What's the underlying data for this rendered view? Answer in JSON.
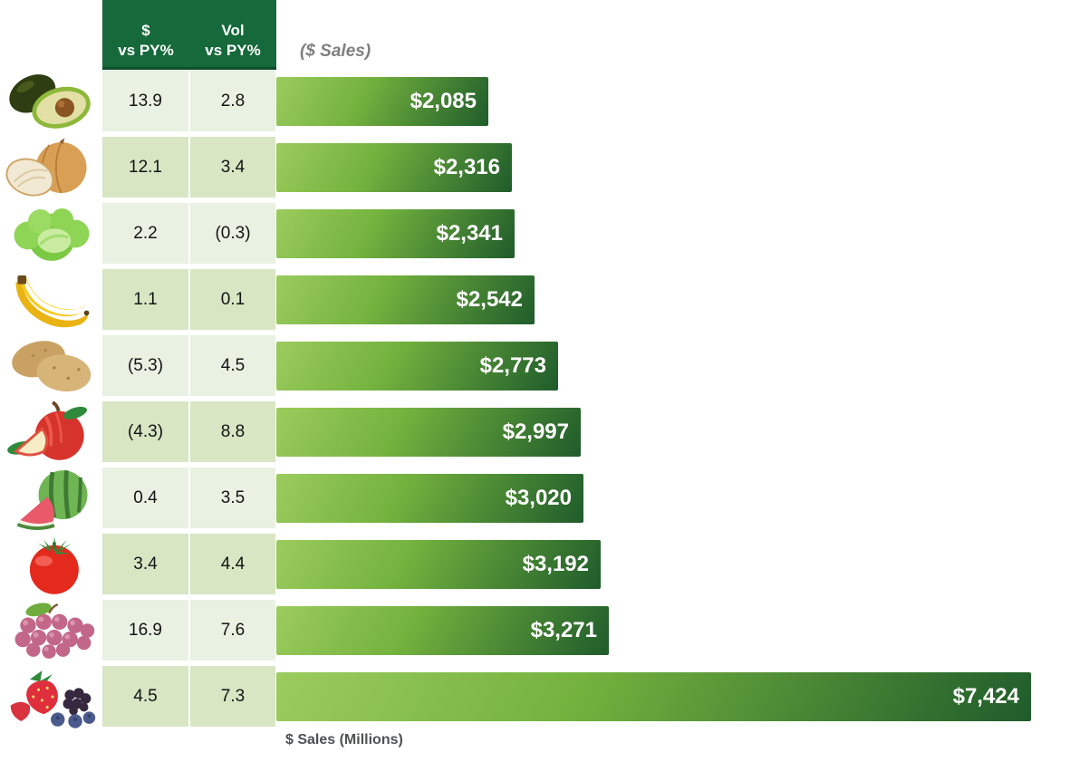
{
  "header": {
    "dollar_col": {
      "line1": "$",
      "line2": "vs PY%"
    },
    "vol_col": {
      "line1": "Vol",
      "line2": "vs PY%"
    },
    "bars_title": "($ Sales)"
  },
  "footer": {
    "axis_label": "$ Sales (Millions)"
  },
  "rows": [
    {
      "product": "Avocado",
      "icon": "avocado-icon",
      "dollar_vs_py": "13.9",
      "vol_vs_py": "2.8",
      "sales_label": "$2,085",
      "sales_value": 2085
    },
    {
      "product": "Onion",
      "icon": "onion-icon",
      "dollar_vs_py": "12.1",
      "vol_vs_py": "3.4",
      "sales_label": "$2,316",
      "sales_value": 2316
    },
    {
      "product": "Lettuce",
      "icon": "lettuce-icon",
      "dollar_vs_py": "2.2",
      "vol_vs_py": "(0.3)",
      "sales_label": "$2,341",
      "sales_value": 2341
    },
    {
      "product": "Banana",
      "icon": "banana-icon",
      "dollar_vs_py": "1.1",
      "vol_vs_py": "0.1",
      "sales_label": "$2,542",
      "sales_value": 2542
    },
    {
      "product": "Potato",
      "icon": "potato-icon",
      "dollar_vs_py": "(5.3)",
      "vol_vs_py": "4.5",
      "sales_label": "$2,773",
      "sales_value": 2773
    },
    {
      "product": "Apple",
      "icon": "apple-icon",
      "dollar_vs_py": "(4.3)",
      "vol_vs_py": "8.8",
      "sales_label": "$2,997",
      "sales_value": 2997
    },
    {
      "product": "Watermelon",
      "icon": "watermelon-icon",
      "dollar_vs_py": "0.4",
      "vol_vs_py": "3.5",
      "sales_label": "$3,020",
      "sales_value": 3020
    },
    {
      "product": "Tomato",
      "icon": "tomato-icon",
      "dollar_vs_py": "3.4",
      "vol_vs_py": "4.4",
      "sales_label": "$3,192",
      "sales_value": 3192
    },
    {
      "product": "Grapes",
      "icon": "grapes-icon",
      "dollar_vs_py": "16.9",
      "vol_vs_py": "7.6",
      "sales_label": "$3,271",
      "sales_value": 3271
    },
    {
      "product": "Berries",
      "icon": "berries-icon",
      "dollar_vs_py": "4.5",
      "vol_vs_py": "7.3",
      "sales_label": "$7,424",
      "sales_value": 7424
    }
  ],
  "colors": {
    "header_green": "#15693a",
    "row_light": "#e9f1e2",
    "row_alt": "#d8e6c4",
    "bar_gradient_start": "#9bcc5e",
    "bar_gradient_end": "#1f5c2b",
    "bar_label_white": "#ffffff",
    "title_gray": "#7f7f7f",
    "footer_gray": "#4f5052"
  },
  "chart_data": {
    "type": "bar",
    "orientation": "horizontal",
    "title": "($ Sales)",
    "xlabel": "$ Sales (Millions)",
    "categories": [
      "Avocado",
      "Onion",
      "Lettuce",
      "Banana",
      "Potato",
      "Apple",
      "Watermelon",
      "Tomato",
      "Grapes",
      "Berries"
    ],
    "series": [
      {
        "name": "$ Sales (Millions)",
        "values": [
          2085,
          2316,
          2341,
          2542,
          2773,
          2997,
          3020,
          3192,
          3271,
          7424
        ]
      },
      {
        "name": "$ vs PY%",
        "values": [
          13.9,
          12.1,
          2.2,
          1.1,
          -5.3,
          -4.3,
          0.4,
          3.4,
          16.9,
          4.5
        ]
      },
      {
        "name": "Vol vs PY%",
        "values": [
          2.8,
          3.4,
          -0.3,
          0.1,
          4.5,
          8.8,
          3.5,
          4.4,
          7.6,
          7.3
        ]
      }
    ],
    "xlim": [
      0,
      7424
    ],
    "value_label_format": "$#,###",
    "negative_format": "parentheses",
    "grid": false,
    "legend": false,
    "bar_color": "green-gradient",
    "sorted": "ascending by sales"
  }
}
